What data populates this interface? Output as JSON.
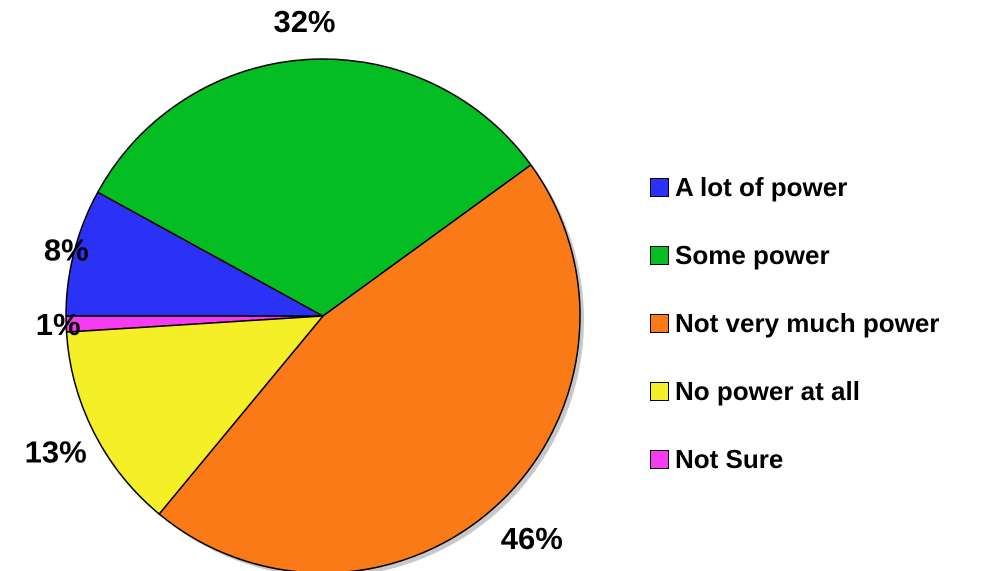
{
  "chart_data": {
    "type": "pie",
    "categories": [
      "A lot of power",
      "Some power",
      "Not very much power",
      "No power at all",
      "Not Sure"
    ],
    "values": [
      8,
      32,
      46,
      13,
      1
    ],
    "labels": [
      "8%",
      "32%",
      "46%",
      "13%",
      "1%"
    ],
    "colors": [
      "#2a32f5",
      "#04bd23",
      "#fb7a18",
      "#f5ef27",
      "#f53cf0"
    ],
    "legend_position": "right",
    "title": ""
  }
}
